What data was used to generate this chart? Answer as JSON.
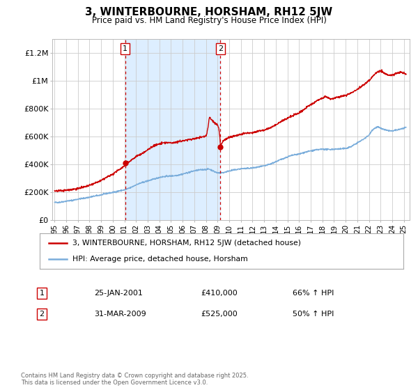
{
  "title": "3, WINTERBOURNE, HORSHAM, RH12 5JW",
  "subtitle": "Price paid vs. HM Land Registry's House Price Index (HPI)",
  "title_fontsize": 11,
  "subtitle_fontsize": 8.5,
  "background_color": "#ffffff",
  "plot_bg_color": "#ffffff",
  "grid_color": "#cccccc",
  "red_color": "#cc0000",
  "blue_color": "#7aaddb",
  "shaded_region_color": "#ddeeff",
  "sale1_date_num": 2001.07,
  "sale1_price": 410000,
  "sale1_label": "1",
  "sale1_date_str": "25-JAN-2001",
  "sale1_pct": "66%",
  "sale2_date_num": 2009.25,
  "sale2_price": 525000,
  "sale2_label": "2",
  "sale2_date_str": "31-MAR-2009",
  "sale2_pct": "50%",
  "xmin": 1994.8,
  "xmax": 2025.5,
  "ymin": 0,
  "ymax": 1300000,
  "legend_label_red": "3, WINTERBOURNE, HORSHAM, RH12 5JW (detached house)",
  "legend_label_blue": "HPI: Average price, detached house, Horsham",
  "footer_text": "Contains HM Land Registry data © Crown copyright and database right 2025.\nThis data is licensed under the Open Government Licence v3.0.",
  "ytick_labels": [
    "£0",
    "£200K",
    "£400K",
    "£600K",
    "£800K",
    "£1M",
    "£1.2M"
  ],
  "ytick_values": [
    0,
    200000,
    400000,
    600000,
    800000,
    1000000,
    1200000
  ],
  "xtick_years": [
    1995,
    1996,
    1997,
    1998,
    1999,
    2000,
    2001,
    2002,
    2003,
    2004,
    2005,
    2006,
    2007,
    2008,
    2009,
    2010,
    2011,
    2012,
    2013,
    2014,
    2015,
    2016,
    2017,
    2018,
    2019,
    2020,
    2021,
    2022,
    2023,
    2024,
    2025
  ],
  "xtick_labels": [
    "95",
    "96",
    "97",
    "98",
    "99",
    "00",
    "01",
    "02",
    "03",
    "04",
    "05",
    "06",
    "07",
    "08",
    "09",
    "10",
    "11",
    "12",
    "13",
    "14",
    "15",
    "16",
    "17",
    "18",
    "19",
    "20",
    "21",
    "22",
    "23",
    "24",
    "25"
  ]
}
